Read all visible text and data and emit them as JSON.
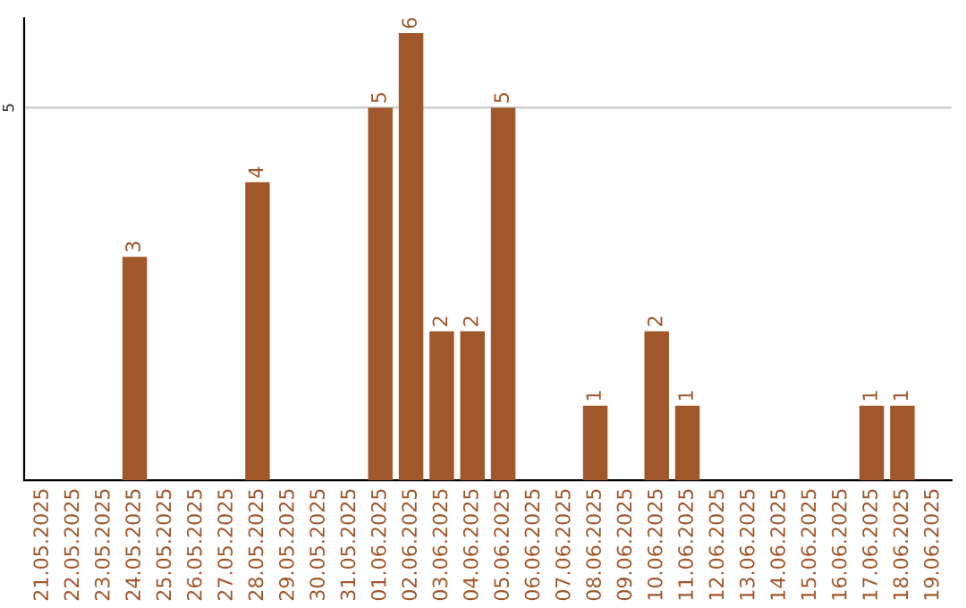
{
  "chart_data": {
    "type": "bar",
    "categories": [
      "21.05.2025",
      "22.05.2025",
      "23.05.2025",
      "24.05.2025",
      "25.05.2025",
      "26.05.2025",
      "27.05.2025",
      "28.05.2025",
      "29.05.2025",
      "30.05.2025",
      "31.05.2025",
      "01.06.2025",
      "02.06.2025",
      "03.06.2025",
      "04.06.2025",
      "05.06.2025",
      "06.06.2025",
      "07.06.2025",
      "08.06.2025",
      "09.06.2025",
      "10.06.2025",
      "11.06.2025",
      "12.06.2025",
      "13.06.2025",
      "14.06.2025",
      "15.06.2025",
      "16.06.2025",
      "17.06.2025",
      "18.06.2025",
      "19.06.2025"
    ],
    "values": [
      0,
      0,
      0,
      3,
      0,
      0,
      0,
      4,
      0,
      0,
      0,
      5,
      6,
      2,
      2,
      5,
      0,
      0,
      1,
      0,
      2,
      1,
      0,
      0,
      0,
      0,
      0,
      1,
      1,
      0
    ],
    "value_labels": [
      null,
      null,
      null,
      "3",
      null,
      null,
      null,
      "4",
      null,
      null,
      null,
      "5",
      "6",
      "2",
      "2",
      "5",
      null,
      null,
      "1",
      null,
      "2",
      "1",
      null,
      null,
      null,
      null,
      null,
      "1",
      "1",
      null
    ],
    "color": "#a0572a",
    "ylim": [
      0,
      6.2
    ],
    "yticks": [
      5
    ],
    "grid": "y"
  }
}
